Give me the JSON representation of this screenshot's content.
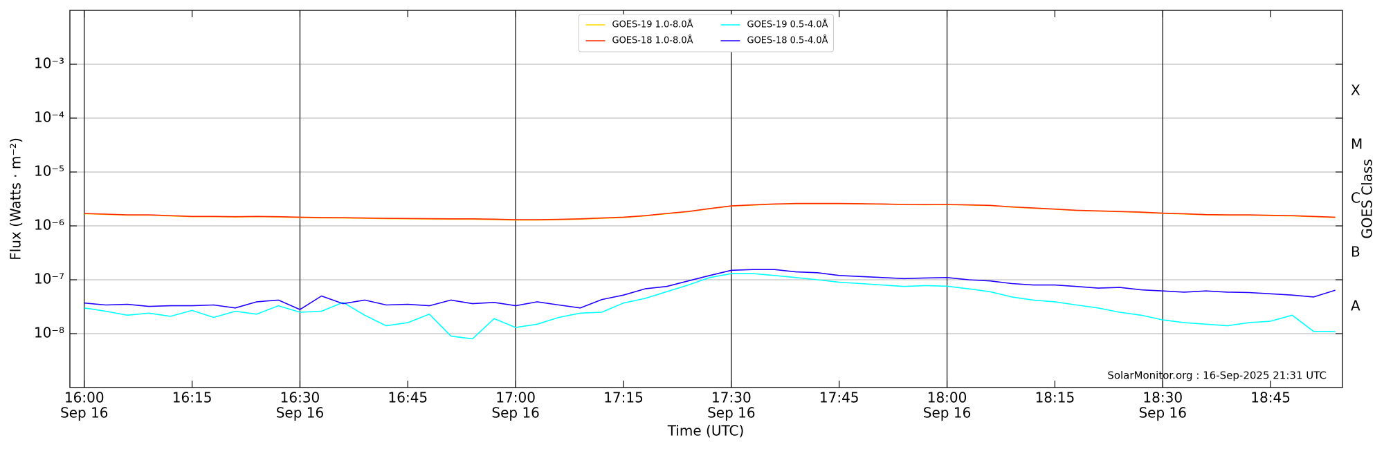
{
  "chart_data": {
    "type": "line",
    "x_label": "Time (UTC)",
    "y_label": "Flux (Watts · m⁻²)",
    "y2_label": "GOES Class",
    "annotation": "SolarMonitor.org : 16-Sep-2025 21:31 UTC",
    "log_y": true,
    "grid": true,
    "legend": "upper center",
    "xlim": [
      "15:58",
      "18:55"
    ],
    "ylim": [
      1e-09,
      0.01
    ],
    "y2lim": [
      1e-09,
      0.01
    ],
    "xticks": [
      "16:00",
      "16:15",
      "16:30",
      "16:45",
      "17:00",
      "17:15",
      "17:30",
      "17:45",
      "18:00",
      "18:15",
      "18:30",
      "18:45"
    ],
    "xtick_sublabels": [
      "Sep 16",
      null,
      "Sep 16",
      null,
      "Sep 16",
      null,
      "Sep 16",
      null,
      "Sep 16",
      null,
      "Sep 16",
      null
    ],
    "vlines": [
      "16:00",
      "16:30",
      "17:00",
      "17:30",
      "18:00",
      "18:30"
    ],
    "yticks": [
      {
        "value": 1e-08,
        "label": "10⁻⁸"
      },
      {
        "value": 1e-07,
        "label": "10⁻⁷"
      },
      {
        "value": 1e-06,
        "label": "10⁻⁶"
      },
      {
        "value": 1e-05,
        "label": "10⁻⁵"
      },
      {
        "value": 0.0001,
        "label": "10⁻⁴"
      },
      {
        "value": 0.001,
        "label": "10⁻³"
      }
    ],
    "y2ticks": [
      {
        "value": 3.16e-08,
        "label": "A"
      },
      {
        "value": 3.16e-07,
        "label": "B"
      },
      {
        "value": 3.16e-06,
        "label": "C"
      },
      {
        "value": 3.16e-05,
        "label": "M"
      },
      {
        "value": 0.000316,
        "label": "X"
      }
    ],
    "x": [
      "16:00",
      "16:03",
      "16:06",
      "16:09",
      "16:12",
      "16:15",
      "16:18",
      "16:21",
      "16:24",
      "16:27",
      "16:30",
      "16:33",
      "16:36",
      "16:39",
      "16:42",
      "16:45",
      "16:48",
      "16:51",
      "16:54",
      "16:57",
      "17:00",
      "17:03",
      "17:06",
      "17:09",
      "17:12",
      "17:15",
      "17:18",
      "17:21",
      "17:24",
      "17:27",
      "17:30",
      "17:33",
      "17:36",
      "17:39",
      "17:42",
      "17:45",
      "17:48",
      "17:51",
      "17:54",
      "17:57",
      "18:00",
      "18:03",
      "18:06",
      "18:09",
      "18:12",
      "18:15",
      "18:18",
      "18:21",
      "18:24",
      "18:27",
      "18:30",
      "18:33",
      "18:36",
      "18:39",
      "18:42",
      "18:45",
      "18:48",
      "18:51",
      "18:54"
    ],
    "series": [
      {
        "name": "GOES-19 1.0-8.0Å",
        "color": "#ffd700",
        "values": [
          1.68e-06,
          1.63e-06,
          1.58e-06,
          1.58e-06,
          1.53e-06,
          1.48e-06,
          1.48e-06,
          1.46e-06,
          1.48e-06,
          1.46e-06,
          1.43e-06,
          1.41e-06,
          1.4e-06,
          1.38e-06,
          1.36e-06,
          1.35e-06,
          1.34e-06,
          1.33e-06,
          1.33e-06,
          1.31e-06,
          1.28e-06,
          1.28e-06,
          1.3e-06,
          1.33e-06,
          1.38e-06,
          1.43e-06,
          1.53e-06,
          1.68e-06,
          1.83e-06,
          2.08e-06,
          2.33e-06,
          2.43e-06,
          2.53e-06,
          2.58e-06,
          2.58e-06,
          2.58e-06,
          2.56e-06,
          2.53e-06,
          2.48e-06,
          2.46e-06,
          2.48e-06,
          2.43e-06,
          2.38e-06,
          2.23e-06,
          2.13e-06,
          2.03e-06,
          1.93e-06,
          1.88e-06,
          1.83e-06,
          1.78e-06,
          1.7e-06,
          1.66e-06,
          1.6e-06,
          1.58e-06,
          1.58e-06,
          1.55e-06,
          1.53e-06,
          1.48e-06,
          1.43e-06
        ]
      },
      {
        "name": "GOES-18 1.0-8.0Å",
        "color": "#ff2a00",
        "values": [
          1.7e-06,
          1.65e-06,
          1.6e-06,
          1.6e-06,
          1.55e-06,
          1.5e-06,
          1.5e-06,
          1.48e-06,
          1.5e-06,
          1.48e-06,
          1.45e-06,
          1.43e-06,
          1.42e-06,
          1.4e-06,
          1.38e-06,
          1.37e-06,
          1.36e-06,
          1.35e-06,
          1.35e-06,
          1.33e-06,
          1.3e-06,
          1.3e-06,
          1.32e-06,
          1.35e-06,
          1.4e-06,
          1.45e-06,
          1.55e-06,
          1.7e-06,
          1.85e-06,
          2.1e-06,
          2.35e-06,
          2.45e-06,
          2.55e-06,
          2.6e-06,
          2.6e-06,
          2.6e-06,
          2.58e-06,
          2.55e-06,
          2.5e-06,
          2.48e-06,
          2.5e-06,
          2.45e-06,
          2.4e-06,
          2.25e-06,
          2.15e-06,
          2.05e-06,
          1.95e-06,
          1.9e-06,
          1.85e-06,
          1.8e-06,
          1.72e-06,
          1.68e-06,
          1.62e-06,
          1.6e-06,
          1.6e-06,
          1.57e-06,
          1.55e-06,
          1.5e-06,
          1.45e-06
        ]
      },
      {
        "name": "GOES-19 0.5-4.0Å",
        "color": "#00ffff",
        "values": [
          3e-08,
          2.6e-08,
          2.2e-08,
          2.4e-08,
          2.1e-08,
          2.7e-08,
          2e-08,
          2.6e-08,
          2.3e-08,
          3.3e-08,
          2.5e-08,
          2.6e-08,
          3.8e-08,
          2.2e-08,
          1.4e-08,
          1.6e-08,
          2.3e-08,
          9e-09,
          8e-09,
          1.9e-08,
          1.3e-08,
          1.5e-08,
          2e-08,
          2.4e-08,
          2.5e-08,
          3.7e-08,
          4.5e-08,
          6e-08,
          8e-08,
          1.1e-07,
          1.3e-07,
          1.3e-07,
          1.2e-07,
          1.1e-07,
          1e-07,
          9e-08,
          8.5e-08,
          8e-08,
          7.5e-08,
          7.8e-08,
          7.6e-08,
          6.8e-08,
          6e-08,
          4.8e-08,
          4.2e-08,
          3.9e-08,
          3.4e-08,
          3e-08,
          2.5e-08,
          2.2e-08,
          1.8e-08,
          1.6e-08,
          1.5e-08,
          1.4e-08,
          1.6e-08,
          1.7e-08,
          2.2e-08,
          1.1e-08,
          1.1e-08
        ]
      },
      {
        "name": "GOES-18 0.5-4.0Å",
        "color": "#2000ff",
        "values": [
          3.7e-08,
          3.4e-08,
          3.5e-08,
          3.2e-08,
          3.3e-08,
          3.3e-08,
          3.4e-08,
          3e-08,
          3.9e-08,
          4.2e-08,
          2.8e-08,
          5e-08,
          3.6e-08,
          4.2e-08,
          3.4e-08,
          3.5e-08,
          3.3e-08,
          4.2e-08,
          3.6e-08,
          3.8e-08,
          3.3e-08,
          3.9e-08,
          3.4e-08,
          3e-08,
          4.3e-08,
          5.2e-08,
          6.8e-08,
          7.5e-08,
          9.5e-08,
          1.2e-07,
          1.5e-07,
          1.55e-07,
          1.55e-07,
          1.4e-07,
          1.35e-07,
          1.2e-07,
          1.15e-07,
          1.1e-07,
          1.05e-07,
          1.08e-07,
          1.1e-07,
          1e-07,
          9.5e-08,
          8.5e-08,
          8e-08,
          8e-08,
          7.5e-08,
          7e-08,
          7.2e-08,
          6.5e-08,
          6.2e-08,
          5.9e-08,
          6.2e-08,
          5.9e-08,
          5.8e-08,
          5.5e-08,
          5.2e-08,
          4.8e-08,
          6.4e-08
        ]
      }
    ]
  }
}
